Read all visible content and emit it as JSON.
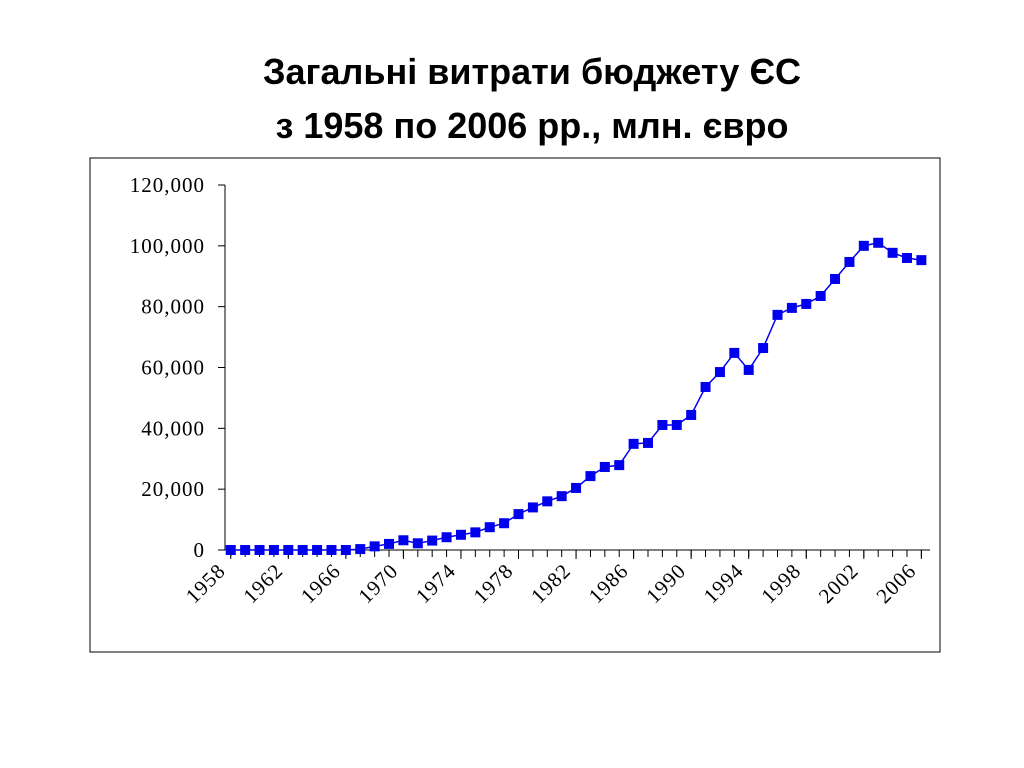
{
  "chart_data": {
    "type": "line",
    "title": [
      "Загальні витрати бюджету ЄС",
      "з 1958 по 2006 рр., млн. євро"
    ],
    "x": [
      1958,
      1959,
      1960,
      1961,
      1962,
      1963,
      1964,
      1965,
      1966,
      1967,
      1968,
      1969,
      1970,
      1971,
      1972,
      1973,
      1974,
      1975,
      1976,
      1977,
      1978,
      1979,
      1980,
      1981,
      1982,
      1983,
      1984,
      1985,
      1986,
      1987,
      1988,
      1989,
      1990,
      1991,
      1992,
      1993,
      1994,
      1995,
      1996,
      1997,
      1998,
      1999,
      2000,
      2001,
      2002,
      2003,
      2004,
      2005,
      2006
    ],
    "series": [
      {
        "name": "Загальні витрати",
        "color": "#0000ee",
        "values": [
          0,
          0,
          0,
          0,
          0,
          0,
          0,
          0,
          0,
          300,
          1200,
          2000,
          3200,
          2200,
          3100,
          4200,
          5000,
          5800,
          7500,
          8800,
          11800,
          14000,
          16000,
          17700,
          20400,
          24300,
          27300,
          27900,
          34900,
          35200,
          41100,
          41100,
          44400,
          53600,
          58500,
          64800,
          59200,
          66400,
          77300,
          79600,
          80900,
          83500,
          89100,
          94700,
          100000,
          101000,
          97700,
          96000,
          95300
        ]
      }
    ],
    "xlim": [
      1957.6,
      2006.6
    ],
    "xticks": [
      1958,
      1962,
      1966,
      1970,
      1974,
      1978,
      1982,
      1986,
      1990,
      1994,
      1998,
      2002,
      2006
    ],
    "ylim": [
      0,
      120000
    ],
    "yticks": [
      0,
      {
        "value": 20000,
        "label": "20,000"
      },
      {
        "value": 40000,
        "label": "40,000"
      },
      {
        "value": 60000,
        "label": "60,000"
      },
      {
        "value": 80000,
        "label": "80,000"
      },
      {
        "value": 100000,
        "label": "100,000"
      },
      {
        "value": 120000,
        "label": "120,000"
      }
    ],
    "grid": false
  }
}
